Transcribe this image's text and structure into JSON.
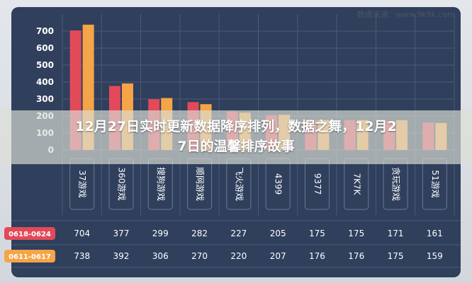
{
  "source_label": "数据来源：www.9k9k.com",
  "headline": {
    "line1": "12月27日实时更新数据降序排列，数据之舞，12月2",
    "line2": "7日的温馨排序故事"
  },
  "colors": {
    "series1": "#e24a5a",
    "series2": "#f5a447",
    "panel": "#2f3f5c",
    "grid": "#4b5b78"
  },
  "chart_data": {
    "type": "bar",
    "categories": [
      "37游戏",
      "360游戏",
      "搜狗游戏",
      "顺网游戏",
      "飞火游戏",
      "4399",
      "9377",
      "7K7K",
      "贪玩游戏",
      "51游戏"
    ],
    "series": [
      {
        "name": "0618-0624",
        "values": [
          704,
          377,
          299,
          282,
          227,
          205,
          175,
          175,
          171,
          161
        ]
      },
      {
        "name": "0611-0617",
        "values": [
          738,
          392,
          306,
          270,
          220,
          207,
          176,
          176,
          175,
          159
        ]
      }
    ],
    "y_ticks": [
      "0",
      "100",
      "200",
      "300",
      "400",
      "500",
      "600",
      "700"
    ],
    "ylim": [
      0,
      800
    ],
    "grid": true,
    "legend": "table-rows-bottom-left"
  }
}
